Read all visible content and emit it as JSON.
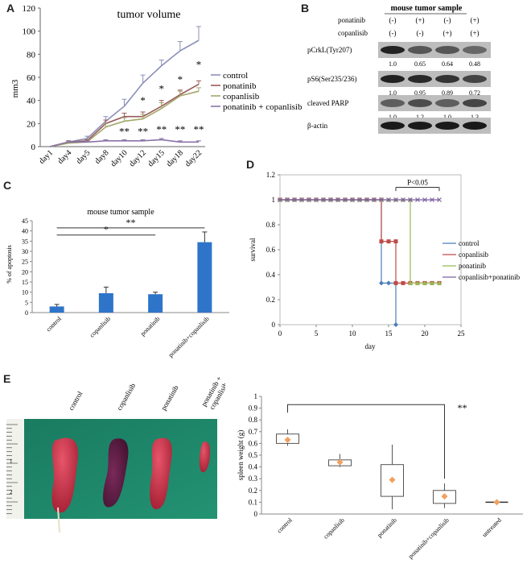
{
  "figure": {
    "panels": [
      "A",
      "B",
      "C",
      "D",
      "E"
    ]
  },
  "chart_data": [
    {
      "panel": "A",
      "type": "line",
      "title": "tumor volume",
      "ylabel": "mm3",
      "xlabel": "",
      "ylim": [
        0,
        120
      ],
      "yticks": [
        "0",
        "20",
        "40",
        "60",
        "80",
        "100",
        "120"
      ],
      "categories": [
        "day1",
        "day4",
        "day5",
        "day8",
        "day10",
        "day12",
        "day15",
        "day18",
        "day22"
      ],
      "series": [
        {
          "name": "control",
          "color": "#8a8fb8",
          "values": [
            0,
            4,
            7,
            22,
            35,
            55,
            70,
            83,
            92
          ],
          "err": [
            0,
            1,
            2,
            4,
            6,
            7,
            5,
            8,
            12
          ]
        },
        {
          "name": "ponatinib",
          "color": "#9a5b5b",
          "values": [
            0,
            4,
            5,
            20,
            26,
            26,
            35,
            45,
            54
          ],
          "err": [
            0,
            1,
            1,
            3,
            3,
            4,
            5,
            4,
            3
          ]
        },
        {
          "name": "copanlisib",
          "color": "#a3a86a",
          "values": [
            0,
            3,
            4,
            17,
            22,
            24,
            33,
            44,
            48
          ],
          "err": [
            0,
            1,
            1,
            3,
            3,
            4,
            5,
            4,
            3
          ]
        },
        {
          "name": "ponatinib + copanlisib",
          "color": "#8b74a8",
          "values": [
            0,
            4,
            4,
            5,
            5,
            5,
            6,
            4,
            4
          ],
          "err": [
            0,
            1,
            1,
            1,
            1,
            1,
            1,
            1,
            1
          ]
        }
      ],
      "annotations": {
        "single": [
          {
            "cat": 5,
            "y": 37,
            "text": "*"
          },
          {
            "cat": 6,
            "y": 47,
            "text": "*"
          },
          {
            "cat": 7,
            "y": 55,
            "text": "*"
          },
          {
            "cat": 8,
            "y": 68,
            "text": "*"
          }
        ],
        "double": [
          {
            "cat": 4,
            "y": 10,
            "text": "**"
          },
          {
            "cat": 5,
            "y": 10,
            "text": "**"
          },
          {
            "cat": 6,
            "y": 12,
            "text": "**"
          },
          {
            "cat": 7,
            "y": 12,
            "text": "**"
          },
          {
            "cat": 8,
            "y": 12,
            "text": "**"
          }
        ]
      }
    },
    {
      "panel": "C",
      "type": "bar",
      "title": "mouse tumor sample",
      "ylabel": "% of apoptosis",
      "ylim": [
        0,
        45
      ],
      "yticks": [
        "0",
        "5",
        "10",
        "15",
        "20",
        "25",
        "30",
        "35",
        "40",
        "45"
      ],
      "categories": [
        "control",
        "copanlisib",
        "ponatinib",
        "ponatinib+copanlisib"
      ],
      "values": [
        3,
        9.5,
        9,
        34.5
      ],
      "err": [
        1,
        3,
        1,
        5
      ],
      "color": "#2e75c9",
      "significance": [
        {
          "from": 0,
          "to": 2,
          "y": 38,
          "text": "*"
        },
        {
          "from": 0,
          "to": 3,
          "y": 41.5,
          "text": "**"
        }
      ]
    },
    {
      "panel": "D",
      "type": "line",
      "title": "",
      "xlabel": "day",
      "ylabel": "survival",
      "xlim": [
        0,
        25
      ],
      "ylim": [
        0,
        1.2
      ],
      "xticks": [
        "0",
        "5",
        "10",
        "15",
        "20",
        "25"
      ],
      "yticks": [
        "0",
        "0.2",
        "0.4",
        "0.6",
        "0.8",
        "1",
        "1.2"
      ],
      "annotation": "P<0.05",
      "series": [
        {
          "name": "control",
          "color": "#4a7ebb",
          "marker": "diamond",
          "x": [
            0,
            1,
            2,
            3,
            4,
            5,
            6,
            7,
            8,
            9,
            10,
            11,
            12,
            13,
            14,
            14,
            15,
            16,
            16
          ],
          "y": [
            1,
            1,
            1,
            1,
            1,
            1,
            1,
            1,
            1,
            1,
            1,
            1,
            1,
            1,
            1,
            0.333,
            0.333,
            0.333,
            0
          ]
        },
        {
          "name": "copanlisib",
          "color": "#be4b48",
          "marker": "square",
          "x": [
            0,
            1,
            2,
            3,
            4,
            5,
            6,
            7,
            8,
            9,
            10,
            11,
            12,
            13,
            14,
            14,
            15,
            16,
            16,
            17,
            18,
            19,
            20,
            21,
            22
          ],
          "y": [
            1,
            1,
            1,
            1,
            1,
            1,
            1,
            1,
            1,
            1,
            1,
            1,
            1,
            1,
            1,
            0.667,
            0.667,
            0.667,
            0.333,
            0.333,
            0.333,
            0.333,
            0.333,
            0.333,
            0.333
          ]
        },
        {
          "name": "ponatinib",
          "color": "#98b954",
          "marker": "triangle",
          "x": [
            0,
            1,
            2,
            3,
            4,
            5,
            6,
            7,
            8,
            9,
            10,
            11,
            12,
            13,
            14,
            15,
            16,
            17,
            18,
            18,
            19,
            20,
            21,
            22
          ],
          "y": [
            1,
            1,
            1,
            1,
            1,
            1,
            1,
            1,
            1,
            1,
            1,
            1,
            1,
            1,
            1,
            1,
            1,
            1,
            1,
            0.333,
            0.333,
            0.333,
            0.333,
            0.333
          ]
        },
        {
          "name": "copanlisib+ponatinib",
          "color": "#7d60a0",
          "marker": "x",
          "x": [
            0,
            1,
            2,
            3,
            4,
            5,
            6,
            7,
            8,
            9,
            10,
            11,
            12,
            13,
            14,
            15,
            16,
            17,
            18,
            19,
            20,
            21,
            22
          ],
          "y": [
            1,
            1,
            1,
            1,
            1,
            1,
            1,
            1,
            1,
            1,
            1,
            1,
            1,
            1,
            1,
            1,
            1,
            1,
            1,
            1,
            1,
            1,
            1
          ]
        }
      ]
    },
    {
      "panel": "E",
      "type": "box",
      "ylabel": "spleen weight (g)",
      "ylim": [
        0,
        1
      ],
      "yticks": [
        "0",
        "0.1",
        "0.2",
        "0.3",
        "0.4",
        "0.5",
        "0.6",
        "0.7",
        "0.8",
        "0.9",
        "1"
      ],
      "categories": [
        "control",
        "copanlisib",
        "ponatinib",
        "ponatinib+copanlisib",
        "untreated"
      ],
      "boxes": [
        {
          "min": 0.58,
          "q1": 0.6,
          "q3": 0.68,
          "max": 0.72,
          "mean": 0.63
        },
        {
          "min": 0.4,
          "q1": 0.41,
          "q3": 0.46,
          "max": 0.51,
          "mean": 0.44
        },
        {
          "min": 0.04,
          "q1": 0.15,
          "q3": 0.42,
          "max": 0.59,
          "mean": 0.29
        },
        {
          "min": 0.05,
          "q1": 0.09,
          "q3": 0.2,
          "max": 0.26,
          "mean": 0.15
        },
        {
          "min": 0.1,
          "q1": 0.1,
          "q3": 0.1,
          "max": 0.1,
          "mean": 0.1
        }
      ],
      "box_color": "#555555",
      "mean_color": "#f0a060",
      "significance": {
        "from": 0,
        "to": 3,
        "y": 0.93,
        "text": "**"
      }
    }
  ],
  "western_blot": {
    "title": "mouse tumor sample",
    "treatments": [
      {
        "name": "ponatinib",
        "signs": [
          "(-)",
          "(+)",
          "(-)",
          "(+)"
        ]
      },
      {
        "name": "copanlisib",
        "signs": [
          "(-)",
          "(-)",
          "(+)",
          "(+)"
        ]
      }
    ],
    "rows": [
      {
        "label": "pCrkL(Tyr207)",
        "values": [
          "1.0",
          "0.65",
          "0.64",
          "0.48"
        ]
      },
      {
        "label": "pS6(Ser235/236)",
        "values": [
          "1.0",
          "0.95",
          "0.89",
          "0.72"
        ]
      },
      {
        "label": "cleaved PARP",
        "values": [
          "1.0",
          "1.2",
          "1.0",
          "1.3"
        ]
      },
      {
        "label": "β-actin",
        "values": []
      }
    ]
  },
  "photo": {
    "labels": [
      "control",
      "copanlisib",
      "ponatinib",
      "ponatinib + copanlisib"
    ],
    "ruler_marks": [
      "1",
      "2"
    ]
  }
}
